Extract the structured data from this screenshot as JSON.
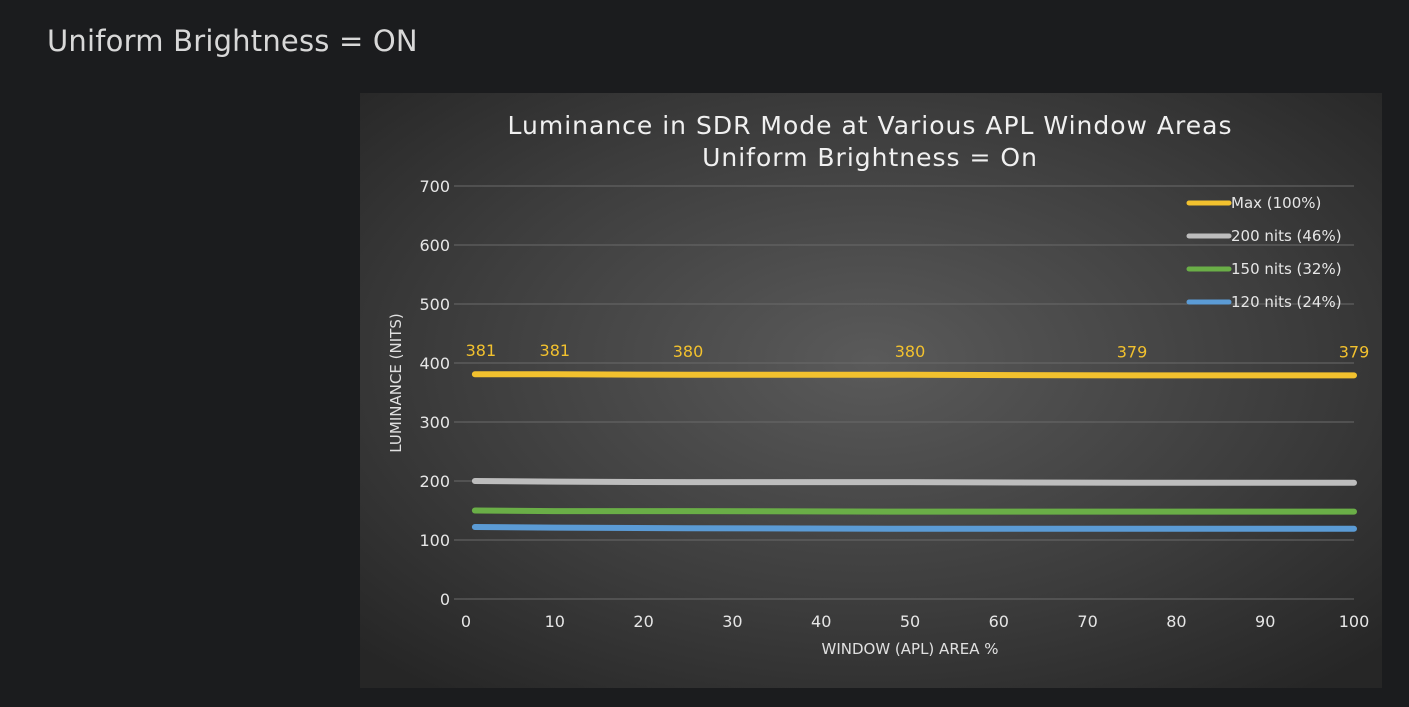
{
  "page": {
    "heading": "Uniform Brightness = ON"
  },
  "chart_data": {
    "type": "line",
    "title": "Luminance in SDR Mode at Various APL Window Areas",
    "subtitle": "Uniform Brightness = On",
    "xlabel": "WINDOW (APL) AREA %",
    "ylabel": "LUMINANCE (NITS)",
    "xlim": [
      0,
      100
    ],
    "ylim": [
      0,
      700
    ],
    "xticks": [
      0,
      10,
      20,
      30,
      40,
      50,
      60,
      70,
      80,
      90,
      100
    ],
    "yticks": [
      0,
      100,
      200,
      300,
      400,
      500,
      600,
      700
    ],
    "grid": "horizontal",
    "legend_position": "top-right",
    "x": [
      1,
      10,
      25,
      50,
      75,
      100
    ],
    "series": [
      {
        "name": "Max (100%)",
        "color": "#f2c12e",
        "values": [
          381,
          381,
          380,
          380,
          379,
          379
        ],
        "data_labels": [
          "381",
          "381",
          "380",
          "380",
          "379",
          "379"
        ]
      },
      {
        "name": "200 nits (46%)",
        "color": "#bdbdbd",
        "values": [
          200,
          199,
          198,
          198,
          197,
          197
        ]
      },
      {
        "name": "150 nits (32%)",
        "color": "#6aae47",
        "values": [
          150,
          149,
          149,
          148,
          148,
          148
        ]
      },
      {
        "name": "120 nits (24%)",
        "color": "#5b9bd5",
        "values": [
          122,
          121,
          120,
          119,
          119,
          119
        ]
      }
    ]
  }
}
